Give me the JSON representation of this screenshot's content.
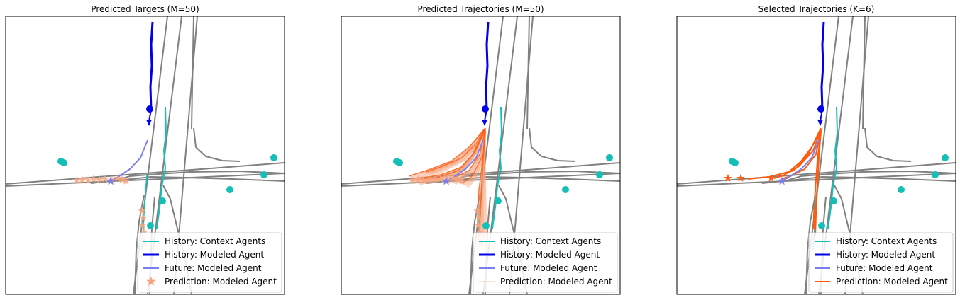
{
  "figure": {
    "colors": {
      "lane": "#808080",
      "context_agent": "#13bfb7",
      "modeled_history": "#0000ee",
      "modeled_future": "#7b7ef0",
      "prediction": "#ff5a0f",
      "prediction_light": "#f7a57e",
      "legend_border": "#cccccc"
    },
    "legend_labels": [
      "History: Context Agents",
      "History: Modeled Agent",
      "Future: Modeled Agent",
      "Prediction: Modeled Agent"
    ],
    "panels": [
      {
        "title": "Predicted Targets (M=50)",
        "mode": "targets",
        "legend_prediction_marker": "star",
        "num_candidates": 50
      },
      {
        "title": "Predicted Trajectories (M=50)",
        "mode": "trajectories",
        "legend_prediction_marker": "thin-line",
        "num_candidates": 50
      },
      {
        "title": "Selected Trajectories (K=6)",
        "mode": "selected",
        "legend_prediction_marker": "line",
        "num_candidates": 6
      }
    ]
  },
  "chart_data": [
    {
      "type": "scatter",
      "title": "Predicted Targets (M=50)",
      "legend": [
        "History: Context Agents",
        "History: Modeled Agent",
        "Future: Modeled Agent",
        "Prediction: Modeled Agent"
      ],
      "legend_placement": "lower-right",
      "axes_visible": false,
      "grid": false
    },
    {
      "type": "line",
      "title": "Predicted Trajectories (M=50)",
      "legend": [
        "History: Context Agents",
        "History: Modeled Agent",
        "Future: Modeled Agent",
        "Prediction: Modeled Agent"
      ],
      "legend_placement": "lower-right",
      "axes_visible": false,
      "grid": false
    },
    {
      "type": "line",
      "title": "Selected Trajectories (K=6)",
      "legend": [
        "History: Context Agents",
        "History: Modeled Agent",
        "Future: Modeled Agent",
        "Prediction: Modeled Agent"
      ],
      "legend_placement": "lower-right",
      "axes_visible": false,
      "grid": false
    }
  ]
}
